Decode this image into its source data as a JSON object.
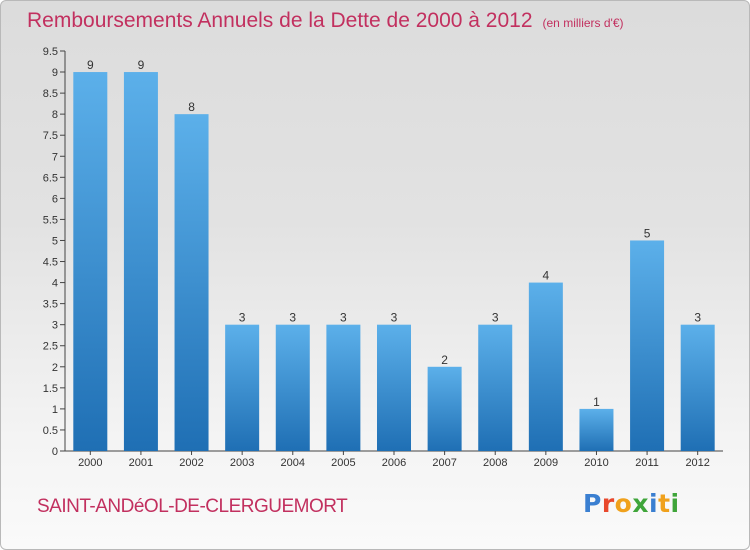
{
  "title": "Remboursements Annuels de la Dette de 2000 à 2012",
  "unit_note": "(en milliers d'€)",
  "place_name": "SAINT-ANDéOL-DE-CLERGUEMORT",
  "logo": {
    "text": "Proxiti",
    "letter_colors": [
      "#3a7fd1",
      "#e8482c",
      "#f0a11c",
      "#3fa53a",
      "#3a7fd1",
      "#f0a11c",
      "#3fa53a"
    ]
  },
  "colors": {
    "bar_light": "#5cb0ea",
    "bar_dark": "#1f6fb4",
    "title": "#c2305f"
  },
  "chart_data": {
    "type": "bar",
    "categories": [
      "2000",
      "2001",
      "2002",
      "2003",
      "2004",
      "2005",
      "2006",
      "2007",
      "2008",
      "2009",
      "2010",
      "2011",
      "2012"
    ],
    "values": [
      9,
      9,
      8,
      3,
      3,
      3,
      3,
      2,
      3,
      4,
      1,
      5,
      3
    ],
    "data_labels": [
      "9",
      "9",
      "8",
      "3",
      "3",
      "3",
      "3",
      "2",
      "3",
      "4",
      "1",
      "5",
      "3"
    ],
    "ylim": [
      0,
      9.5
    ],
    "y_ticks": [
      "0",
      "0.5",
      "1",
      "1.5",
      "2",
      "2.5",
      "3",
      "3.5",
      "4",
      "4.5",
      "5",
      "5.5",
      "6",
      "6.5",
      "7",
      "7.5",
      "8",
      "8.5",
      "9",
      "9.5"
    ],
    "grid": false
  }
}
